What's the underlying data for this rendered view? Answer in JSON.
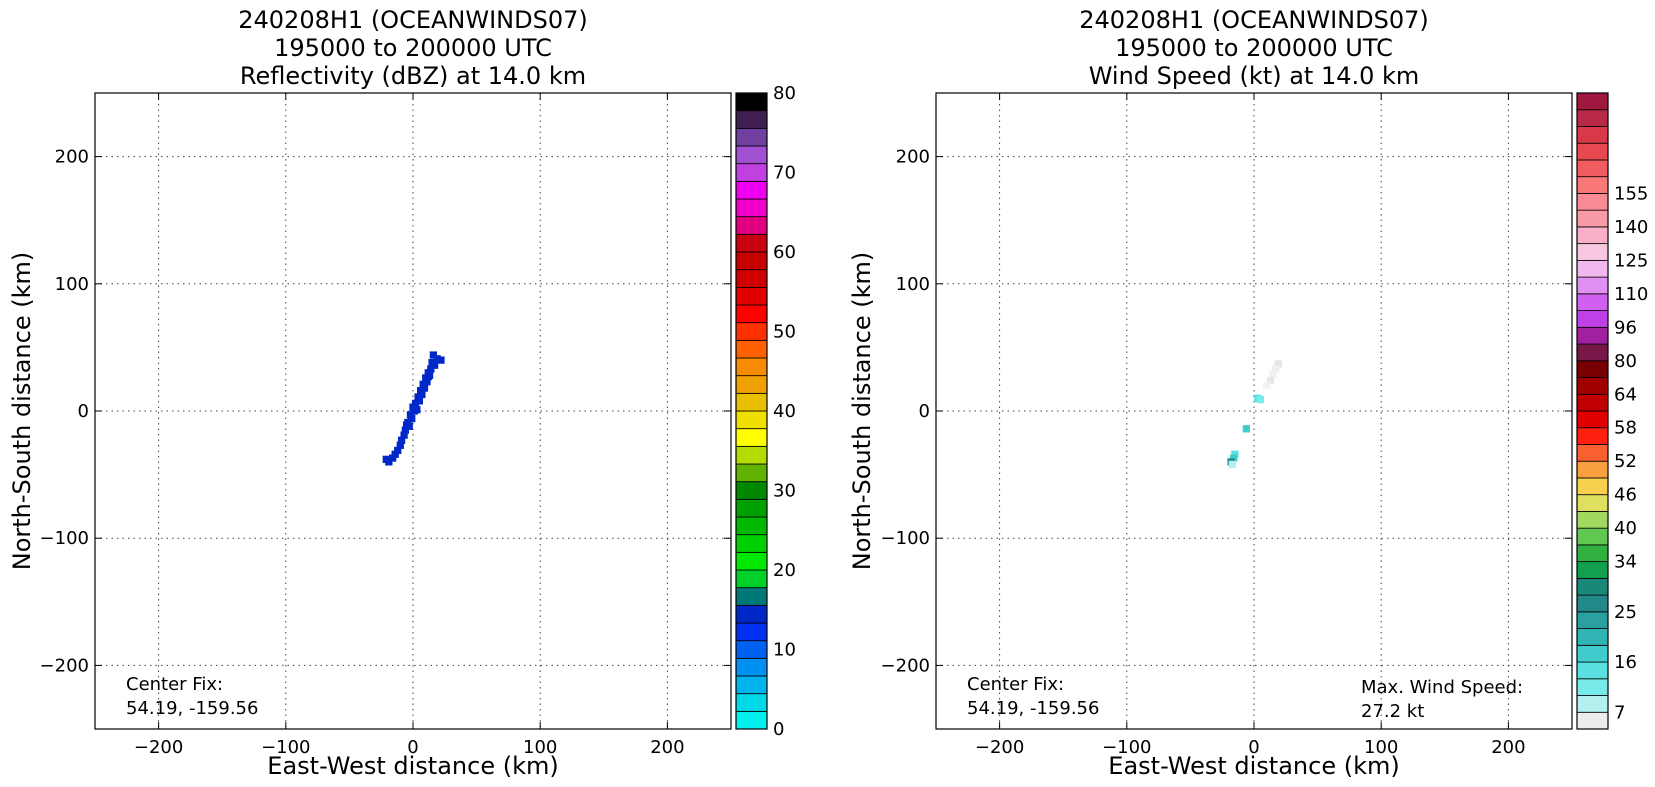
{
  "chart_data": [
    {
      "type": "heatmap",
      "title_lines": [
        "240208H1 (OCEANWINDS07)",
        "195000 to 200000 UTC",
        "Reflectivity (dBZ) at 14.0 km"
      ],
      "xlabel": "East-West distance (km)",
      "ylabel": "North-South distance (km)",
      "xlim": [
        -250,
        250
      ],
      "ylim": [
        -250,
        250
      ],
      "xticks": [
        -200,
        -100,
        0,
        100,
        200
      ],
      "yticks": [
        -200,
        -100,
        0,
        100,
        200
      ],
      "grid": true,
      "annotations": {
        "center_fix_label": "Center Fix:",
        "center_fix_value": "54.19, -159.56"
      },
      "colorbar": {
        "min": 0,
        "max": 80,
        "tick_labels": [
          "0",
          "10",
          "20",
          "30",
          "40",
          "50",
          "60",
          "70",
          "80"
        ],
        "tick_values": [
          0,
          10,
          20,
          30,
          40,
          50,
          60,
          70,
          80
        ],
        "colors": [
          "#00f0f0",
          "#00d8e6",
          "#00b4ec",
          "#0090f0",
          "#0060f0",
          "#0030f0",
          "#0028c8",
          "#007878",
          "#00d028",
          "#00e800",
          "#00d000",
          "#00b800",
          "#00a000",
          "#008800",
          "#60b400",
          "#b4dc00",
          "#ffff00",
          "#f0e000",
          "#e8c000",
          "#f0a000",
          "#f88c00",
          "#ff6000",
          "#ff3000",
          "#ff0000",
          "#e00000",
          "#d00000",
          "#c80000",
          "#c80010",
          "#e00080",
          "#f000c8",
          "#f000f0",
          "#c040e0",
          "#a050d0",
          "#7040a0",
          "#402050",
          "#000000"
        ]
      },
      "cells": [
        [
          16,
          44,
          6
        ],
        [
          19,
          41,
          6
        ],
        [
          15,
          38,
          6
        ],
        [
          17,
          36,
          6
        ],
        [
          14,
          33,
          6
        ],
        [
          12,
          30,
          6
        ],
        [
          13,
          28,
          6
        ],
        [
          10,
          26,
          6
        ],
        [
          11,
          23,
          6
        ],
        [
          8,
          21,
          6
        ],
        [
          9,
          18,
          6
        ],
        [
          6,
          16,
          6
        ],
        [
          7,
          13,
          6
        ],
        [
          4,
          11,
          6
        ],
        [
          5,
          8,
          6
        ],
        [
          2,
          6,
          6
        ],
        [
          0,
          3,
          6
        ],
        [
          1,
          0,
          6
        ],
        [
          -2,
          -3,
          6
        ],
        [
          -1,
          -6,
          6
        ],
        [
          -4,
          -9,
          6
        ],
        [
          -3,
          -12,
          6
        ],
        [
          -6,
          -15,
          6
        ],
        [
          -7,
          -19,
          6
        ],
        [
          -9,
          -23,
          6
        ],
        [
          -10,
          -27,
          6
        ],
        [
          -12,
          -31,
          6
        ],
        [
          -14,
          -34,
          6
        ],
        [
          -16,
          -37,
          6
        ],
        [
          -19,
          -40,
          6
        ],
        [
          -21,
          -38,
          6
        ],
        [
          22,
          40,
          6
        ],
        [
          3,
          1,
          6
        ],
        [
          -5,
          -11,
          6
        ],
        [
          12,
          27,
          6
        ]
      ]
    },
    {
      "type": "heatmap",
      "title_lines": [
        "240208H1 (OCEANWINDS07)",
        "195000 to 200000 UTC",
        "Wind Speed (kt) at 14.0 km"
      ],
      "xlabel": "East-West distance (km)",
      "ylabel": "North-South distance (km)",
      "xlim": [
        -250,
        250
      ],
      "ylim": [
        -250,
        250
      ],
      "xticks": [
        -200,
        -100,
        0,
        100,
        200
      ],
      "yticks": [
        -200,
        -100,
        0,
        100,
        200
      ],
      "grid": true,
      "annotations": {
        "center_fix_label": "Center Fix:",
        "center_fix_value": "54.19, -159.56",
        "max_wind_label": "Max. Wind Speed:",
        "max_wind_value": "27.2 kt"
      },
      "colorbar": {
        "tick_labels": [
          "7",
          "16",
          "25",
          "34",
          "40",
          "46",
          "52",
          "58",
          "64",
          "80",
          "96",
          "110",
          "125",
          "140",
          "155"
        ],
        "tick_boundary_index": [
          1,
          4,
          7,
          10,
          12,
          14,
          16,
          18,
          20,
          22,
          24,
          26,
          28,
          30,
          32
        ],
        "colors": [
          "#ececec",
          "#b4f0f0",
          "#78eaea",
          "#5ae0e0",
          "#40cccc",
          "#30b4b4",
          "#2aa0a0",
          "#238888",
          "#1a8878",
          "#10a050",
          "#30b040",
          "#60c850",
          "#a0d860",
          "#e0e060",
          "#f8d050",
          "#f8a040",
          "#f86030",
          "#ff2010",
          "#e00000",
          "#c00000",
          "#a00000",
          "#780000",
          "#781848",
          "#a020a0",
          "#c040e8",
          "#d060f0",
          "#e090f0",
          "#f0b8ec",
          "#f8c8e0",
          "#f8b0c8",
          "#f89aa8",
          "#f88a94",
          "#f87878",
          "#f05c60",
          "#e84850",
          "#d83848",
          "#b82848",
          "#a01840"
        ]
      },
      "cells": [
        [
          19,
          37,
          "#e4e4e4"
        ],
        [
          17,
          33,
          "#eeeeee"
        ],
        [
          15,
          29,
          "#f0f0f0"
        ],
        [
          13,
          24,
          "#e8e8e8"
        ],
        [
          10,
          20,
          "#f2f2f2"
        ],
        [
          3,
          10,
          "#5ae0e0"
        ],
        [
          5,
          9,
          "#78eaea"
        ],
        [
          -6,
          -14,
          "#40cccc"
        ],
        [
          -15,
          -34,
          "#5ae0e0"
        ],
        [
          -16,
          -37,
          "#40cccc"
        ],
        [
          -18,
          -40,
          "#238888"
        ],
        [
          -17,
          -42,
          "#b4f0f0"
        ]
      ]
    }
  ]
}
